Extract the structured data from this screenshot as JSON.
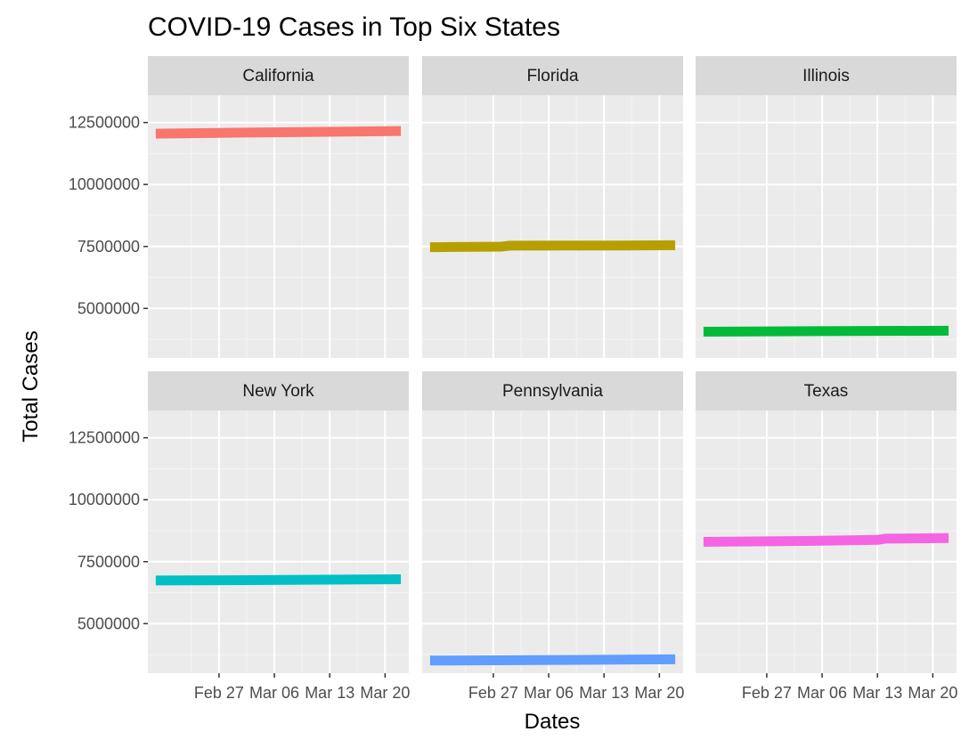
{
  "chart_data": {
    "type": "line",
    "title": "COVID-19 Cases in Top Six States",
    "xlabel": "Dates",
    "ylabel": "Total Cases",
    "x_ticks": [
      "Feb 27",
      "Mar 06",
      "Mar 13",
      "Mar 20"
    ],
    "y_ticks": [
      "5000000",
      "7500000",
      "10000000",
      "12500000"
    ],
    "ylim": [
      3000000,
      13600000
    ],
    "xlim": [
      "2021-02-18",
      "2021-03-23"
    ],
    "grid": true,
    "facets": [
      {
        "name": "California",
        "color": "#F8766D",
        "x": [
          "2021-02-19",
          "2021-03-01",
          "2021-03-10",
          "2021-03-17",
          "2021-03-22"
        ],
        "y": [
          12050000,
          12090000,
          12120000,
          12140000,
          12160000
        ]
      },
      {
        "name": "Florida",
        "color": "#B79F00",
        "x": [
          "2021-02-19",
          "2021-02-28",
          "2021-03-01",
          "2021-03-15",
          "2021-03-22"
        ],
        "y": [
          7470000,
          7490000,
          7530000,
          7540000,
          7550000
        ]
      },
      {
        "name": "Illinois",
        "color": "#00BA38",
        "x": [
          "2021-02-19",
          "2021-03-05",
          "2021-03-22"
        ],
        "y": [
          4060000,
          4080000,
          4100000
        ]
      },
      {
        "name": "New York",
        "color": "#00BFC4",
        "x": [
          "2021-02-19",
          "2021-03-05",
          "2021-03-22"
        ],
        "y": [
          6740000,
          6760000,
          6790000
        ]
      },
      {
        "name": "Pennsylvania",
        "color": "#619CFF",
        "x": [
          "2021-02-19",
          "2021-03-05",
          "2021-03-22"
        ],
        "y": [
          3510000,
          3530000,
          3560000
        ]
      },
      {
        "name": "Texas",
        "color": "#F564E3",
        "x": [
          "2021-02-19",
          "2021-03-05",
          "2021-03-13",
          "2021-03-14",
          "2021-03-22"
        ],
        "y": [
          8300000,
          8340000,
          8380000,
          8430000,
          8450000
        ]
      }
    ]
  }
}
